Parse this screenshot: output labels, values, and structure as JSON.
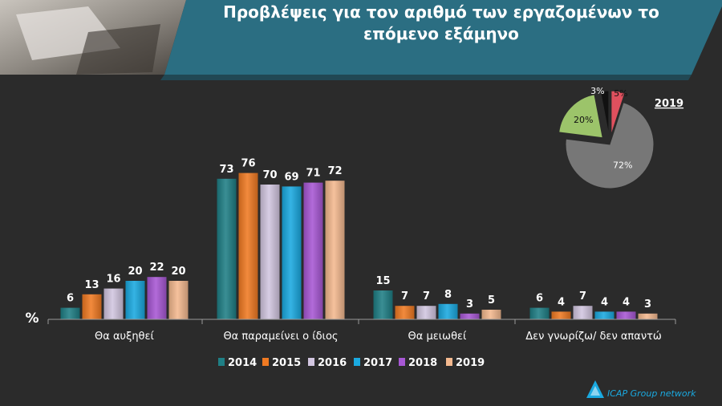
{
  "title": "Προβλέψεις για τον αριθμό των εργαζομένων το επόμενο εξάμηνο",
  "logo_text": "ICAP Group network",
  "colors": {
    "background": "#2b2b2b",
    "header_band": "#2b6e82",
    "series": [
      "#1f7f85",
      "#f07a22",
      "#d2c6e0",
      "#1aa9e0",
      "#a757d4",
      "#f4b98f"
    ]
  },
  "chart_data": [
    {
      "type": "bar",
      "ylabel": "%",
      "categories": [
        "Θα αυξηθεί",
        "Θα παραμείνει ο ίδιος",
        "Θα μειωθεί",
        "Δεν γνωρίζω/ δεν απαντώ"
      ],
      "series": [
        {
          "name": "2014",
          "values": [
            6,
            73,
            15,
            6
          ]
        },
        {
          "name": "2015",
          "values": [
            13,
            76,
            7,
            4
          ]
        },
        {
          "name": "2016",
          "values": [
            16,
            70,
            7,
            7
          ]
        },
        {
          "name": "2017",
          "values": [
            20,
            69,
            8,
            4
          ]
        },
        {
          "name": "2018",
          "values": [
            22,
            71,
            3,
            4
          ]
        },
        {
          "name": "2019",
          "values": [
            20,
            72,
            5,
            3
          ]
        }
      ],
      "ylim": [
        0,
        80
      ],
      "grid": false,
      "legend": "bottom"
    },
    {
      "type": "pie",
      "title": "2019",
      "slices": [
        {
          "label": "5%",
          "value": 5,
          "color": "#e0505e"
        },
        {
          "label": "72%",
          "value": 72,
          "color": "#777777"
        },
        {
          "label": "20%",
          "value": 20,
          "color": "#9cc46a"
        },
        {
          "label": "3%",
          "value": 3,
          "color": "#111111"
        }
      ]
    }
  ]
}
